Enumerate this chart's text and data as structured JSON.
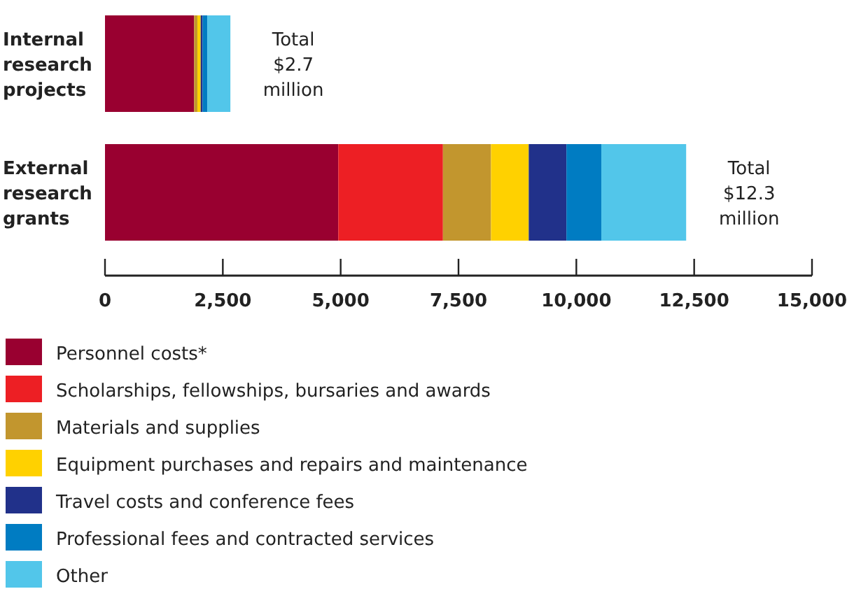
{
  "chart_data": {
    "type": "bar",
    "orientation": "horizontal",
    "stacked": true,
    "categories": [
      "Internal research projects",
      "External research grants"
    ],
    "series": [
      {
        "name": "Personnel costs*",
        "color": "#990030",
        "values": [
          1890,
          4950
        ]
      },
      {
        "name": "Scholarships, fellowships, bursaries and awards",
        "color": "#ed1f24",
        "values": [
          0,
          2220
        ]
      },
      {
        "name": "Materials and supplies",
        "color": "#c2962e",
        "values": [
          70,
          1020
        ]
      },
      {
        "name": "Equipment purchases and repairs and maintenance",
        "color": "#ffd100",
        "values": [
          70,
          800
        ]
      },
      {
        "name": "Travel costs and conference fees",
        "color": "#21318a",
        "values": [
          40,
          800
        ]
      },
      {
        "name": "Professional fees and contracted services",
        "color": "#007cc2",
        "values": [
          100,
          740
        ]
      },
      {
        "name": "Other",
        "color": "#52c6ea",
        "values": [
          490,
          1800
        ]
      }
    ],
    "totals": [
      "Total $2.7 million",
      "Total $12.3 million"
    ],
    "xlim": [
      0,
      15000
    ],
    "xticks": [
      0,
      {
        "value": 2500,
        "label": "2,500"
      },
      {
        "value": 5000,
        "label": "5,000"
      },
      {
        "value": 7500,
        "label": "7,500"
      },
      {
        "value": 10000,
        "label": "10,000"
      },
      {
        "value": 12500,
        "label": "12,500"
      },
      {
        "value": 15000,
        "label": "15,000"
      }
    ],
    "grid": false,
    "legend": "bottom"
  }
}
